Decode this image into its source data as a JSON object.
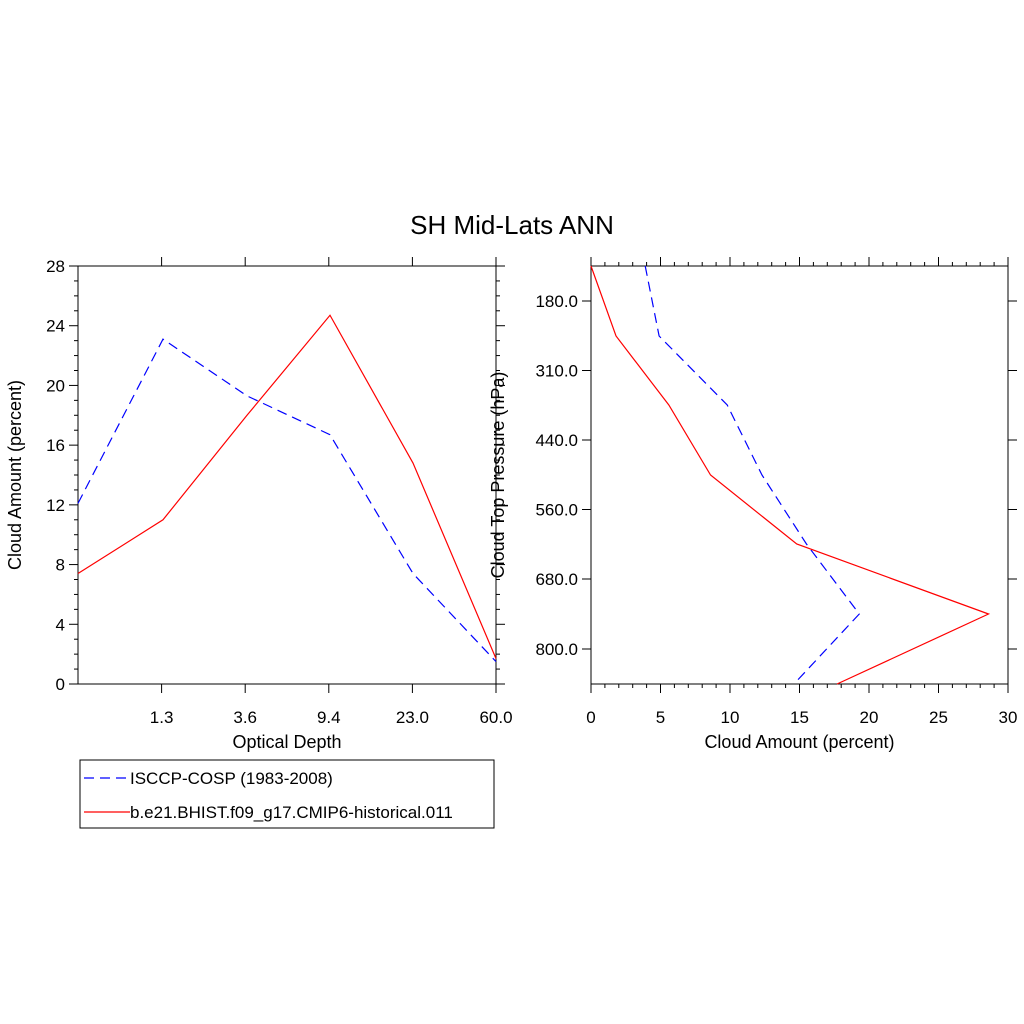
{
  "figure_title": "SH Mid-Lats ANN",
  "colors": {
    "obs": "#0000ff",
    "model": "#ff0000"
  },
  "legend": [
    {
      "name": "ISCCP-COSP (1983-2008)",
      "style": "dashed",
      "color": "#0000ff"
    },
    {
      "name": "b.e21.BHIST.f09_g17.CMIP6-historical.011",
      "style": "solid",
      "color": "#ff0000"
    }
  ],
  "chart_data": [
    {
      "type": "line",
      "title": "",
      "xlabel": "Optical Depth",
      "ylabel": "Cloud Amount (percent)",
      "x_tick_labels": [
        "1.3",
        "3.6",
        "9.4",
        "23.0",
        "60.0"
      ],
      "y_ticks": [
        0,
        4,
        8,
        12,
        16,
        20,
        24,
        28
      ],
      "ylim": [
        0,
        28
      ],
      "series": [
        {
          "name": "ISCCP-COSP (1983-2008)",
          "x_bin": [
            0,
            1,
            2,
            3,
            4,
            5
          ],
          "values": [
            12.1,
            23.1,
            19.3,
            16.7,
            7.4,
            1.5
          ]
        },
        {
          "name": "b.e21.BHIST.f09_g17.CMIP6-historical.011",
          "x_bin": [
            0,
            1,
            2,
            3,
            4,
            5
          ],
          "values": [
            7.4,
            11.0,
            18.0,
            24.7,
            14.8,
            1.7
          ]
        }
      ]
    },
    {
      "type": "line",
      "title": "",
      "xlabel": "Cloud Amount (percent)",
      "ylabel": "Cloud Top Pressure (hPa)",
      "x_ticks": [
        0,
        5,
        10,
        15,
        20,
        25,
        30
      ],
      "xlim": [
        0,
        30
      ],
      "y_tick_labels": [
        "180.0",
        "310.0",
        "440.0",
        "560.0",
        "680.0",
        "800.0"
      ],
      "series": [
        {
          "name": "ISCCP-COSP (1983-2008)",
          "level_index": [
            0,
            1,
            2,
            3,
            4,
            5,
            6
          ],
          "values": [
            3.9,
            4.9,
            9.8,
            12.3,
            15.5,
            19.3,
            14.6
          ]
        },
        {
          "name": "b.e21.BHIST.f09_g17.CMIP6-historical.011",
          "level_index": [
            0,
            1,
            2,
            3,
            4,
            5,
            6
          ],
          "values": [
            0.0,
            1.8,
            5.6,
            8.6,
            14.8,
            28.6,
            17.7
          ]
        }
      ]
    }
  ]
}
